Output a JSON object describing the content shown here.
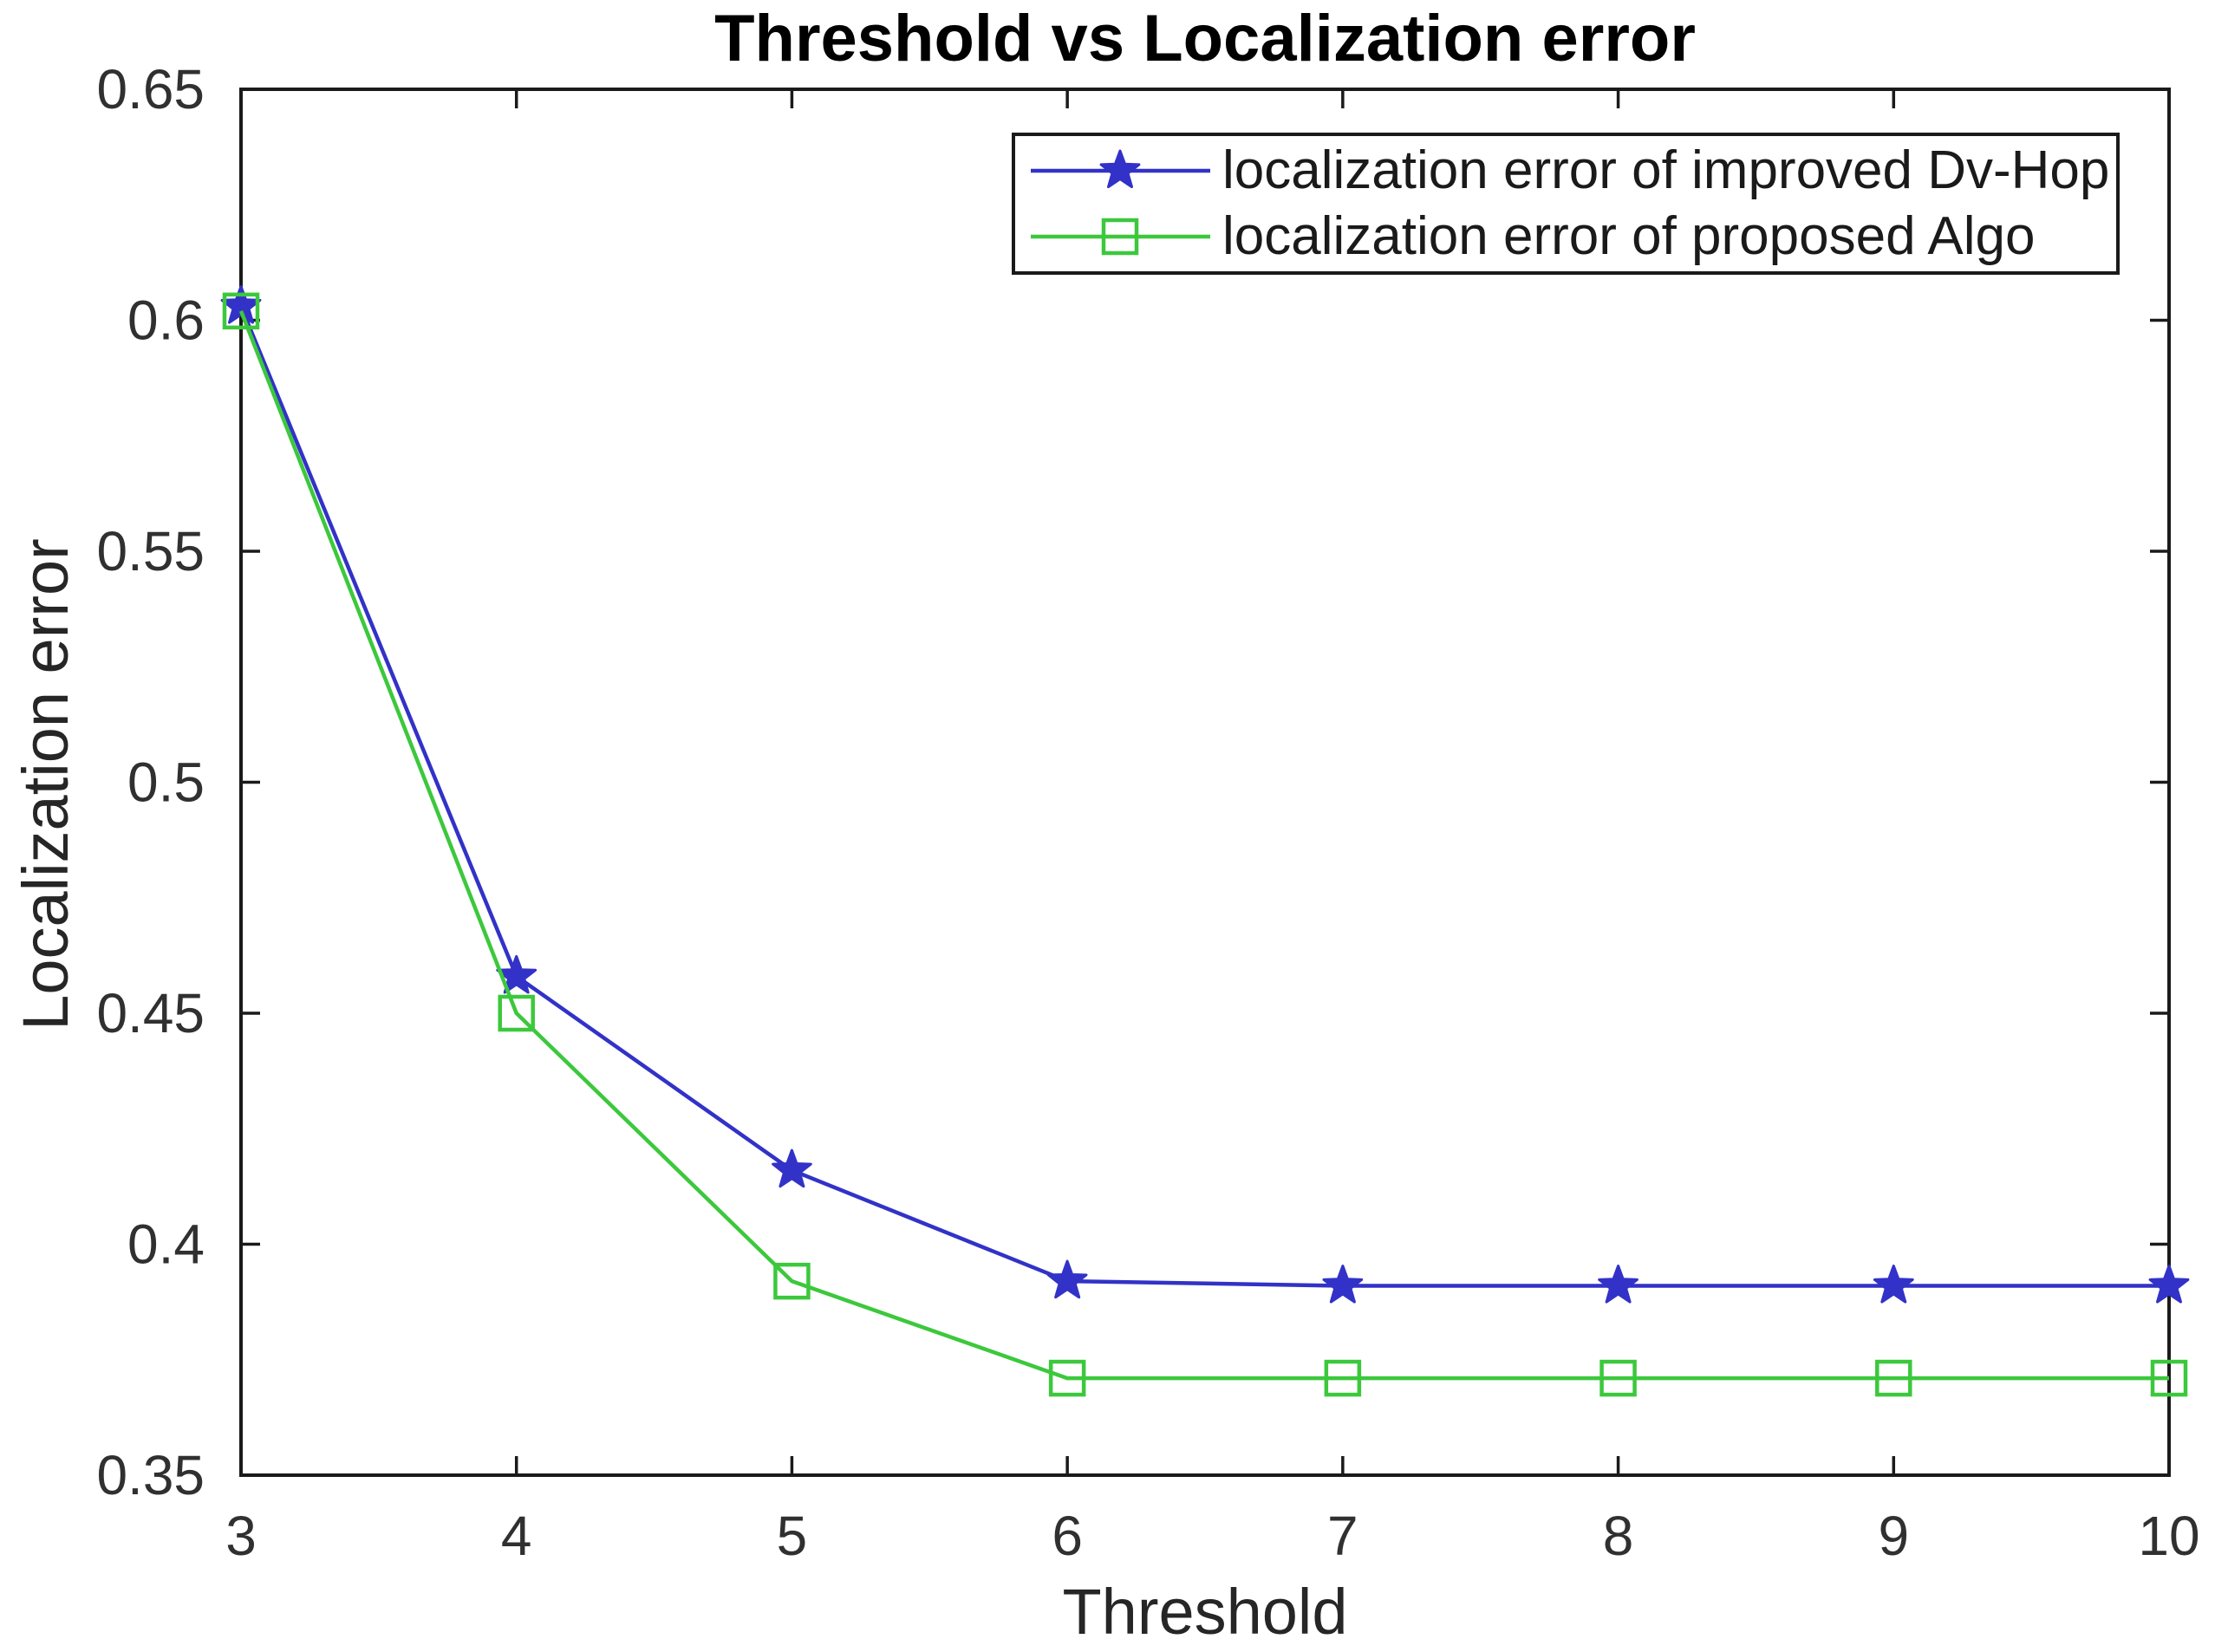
{
  "chart_data": {
    "type": "line",
    "title": "Threshold vs Localization error",
    "xlabel": "Threshold",
    "ylabel": "Localization error",
    "x": [
      3,
      4,
      5,
      6,
      7,
      8,
      9,
      10
    ],
    "xlim": [
      3,
      10
    ],
    "ylim": [
      0.35,
      0.65
    ],
    "x_tick_labels": [
      "3",
      "4",
      "5",
      "6",
      "7",
      "8",
      "9",
      "10"
    ],
    "y_tick_values": [
      0.65,
      0.6,
      0.55,
      0.5,
      0.45,
      0.4,
      0.35
    ],
    "y_tick_labels": [
      "0.65",
      "0.6",
      "0.55",
      "0.5",
      "0.45",
      "0.4",
      "0.35"
    ],
    "grid": false,
    "legend_position": "top-right",
    "series": [
      {
        "name": "localization error of improved Dv-Hop",
        "marker": "star",
        "color": "#3232c8",
        "values": [
          0.603,
          0.458,
          0.416,
          0.392,
          0.391,
          0.391,
          0.391,
          0.391
        ]
      },
      {
        "name": "localization error of proposed Algo",
        "marker": "square",
        "color": "#3cc83c",
        "values": [
          0.602,
          0.45,
          0.392,
          0.371,
          0.371,
          0.371,
          0.371,
          0.371
        ]
      }
    ],
    "axis_color": "#1a1a1a",
    "tick_label_color": "#303030",
    "title_color": "#000000"
  }
}
